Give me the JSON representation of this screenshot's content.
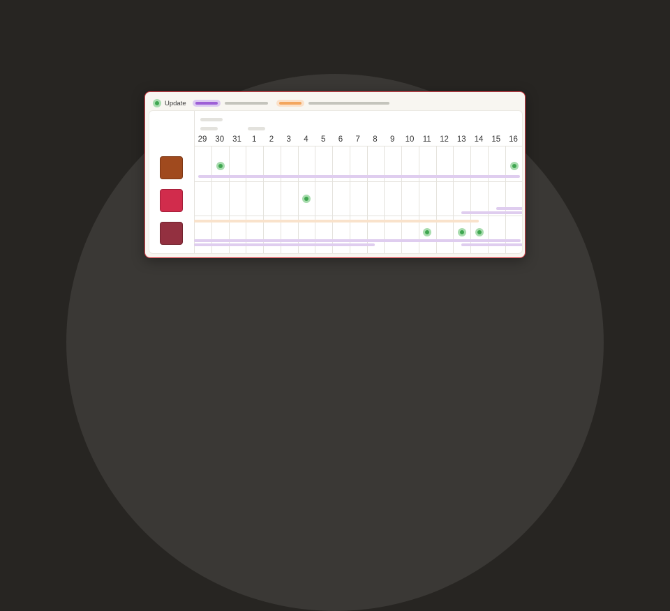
{
  "legend": {
    "label": "Update",
    "icon": "green-dot-icon"
  },
  "timeline": {
    "days": [
      "29",
      "30",
      "31",
      "1",
      "2",
      "3",
      "4",
      "5",
      "6",
      "7",
      "8",
      "9",
      "10",
      "11",
      "12",
      "13",
      "14",
      "15",
      "16"
    ]
  },
  "colors": {
    "accent_purple": "#9d5fd6",
    "accent_orange": "#f3a65e",
    "update_green": "#3fa650",
    "card_border": "#d9404a",
    "row1": "#a04a1e",
    "row2": "#d12c4c",
    "row3": "#933040"
  }
}
